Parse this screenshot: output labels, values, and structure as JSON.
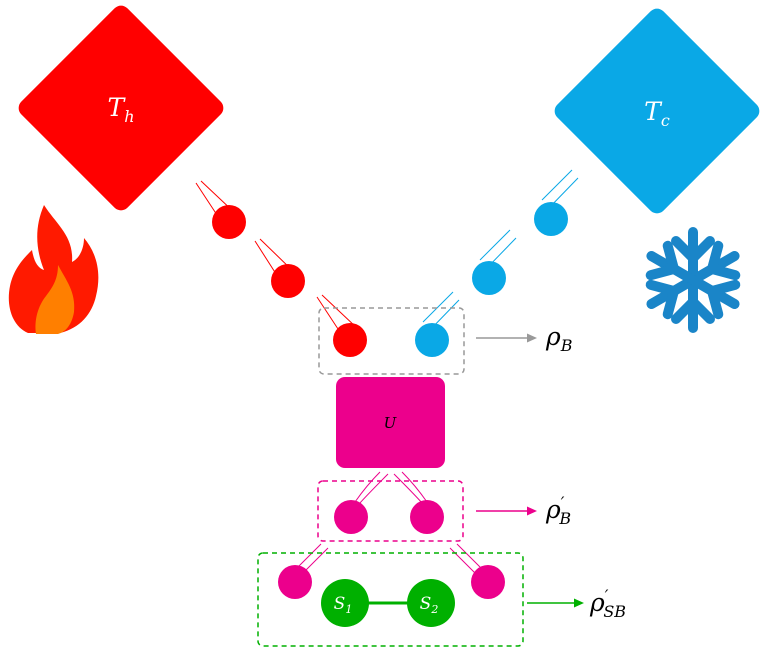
{
  "colors": {
    "hot": "#ff0000",
    "cold": "#0aa8e6",
    "unitary": "#ec008c",
    "system": "#00b000",
    "outline_gray": "#999999",
    "snowflake": "#1a85c8",
    "flame_outer": "#ff1a00",
    "flame_inner": "#ff7f00",
    "white": "#ffffff"
  },
  "reservoirs": {
    "hot": {
      "symbol": "T",
      "subscript": "h"
    },
    "cold": {
      "symbol": "T",
      "subscript": "c"
    }
  },
  "icons": {
    "hot": "fire-icon",
    "cold": "snowflake-icon"
  },
  "unitary": {
    "label": "U"
  },
  "system": {
    "s1": {
      "symbol": "S",
      "subscript": "1"
    },
    "s2": {
      "symbol": "S",
      "subscript": "2"
    }
  },
  "states": {
    "rho_B": {
      "symbol": "ρ",
      "subscript": "B",
      "prime": ""
    },
    "rho_B_prime": {
      "symbol": "ρ",
      "subscript": "B",
      "prime": "′"
    },
    "rho_SB_prime": {
      "symbol": "ρ",
      "subscript": "SB",
      "prime": "′"
    }
  }
}
